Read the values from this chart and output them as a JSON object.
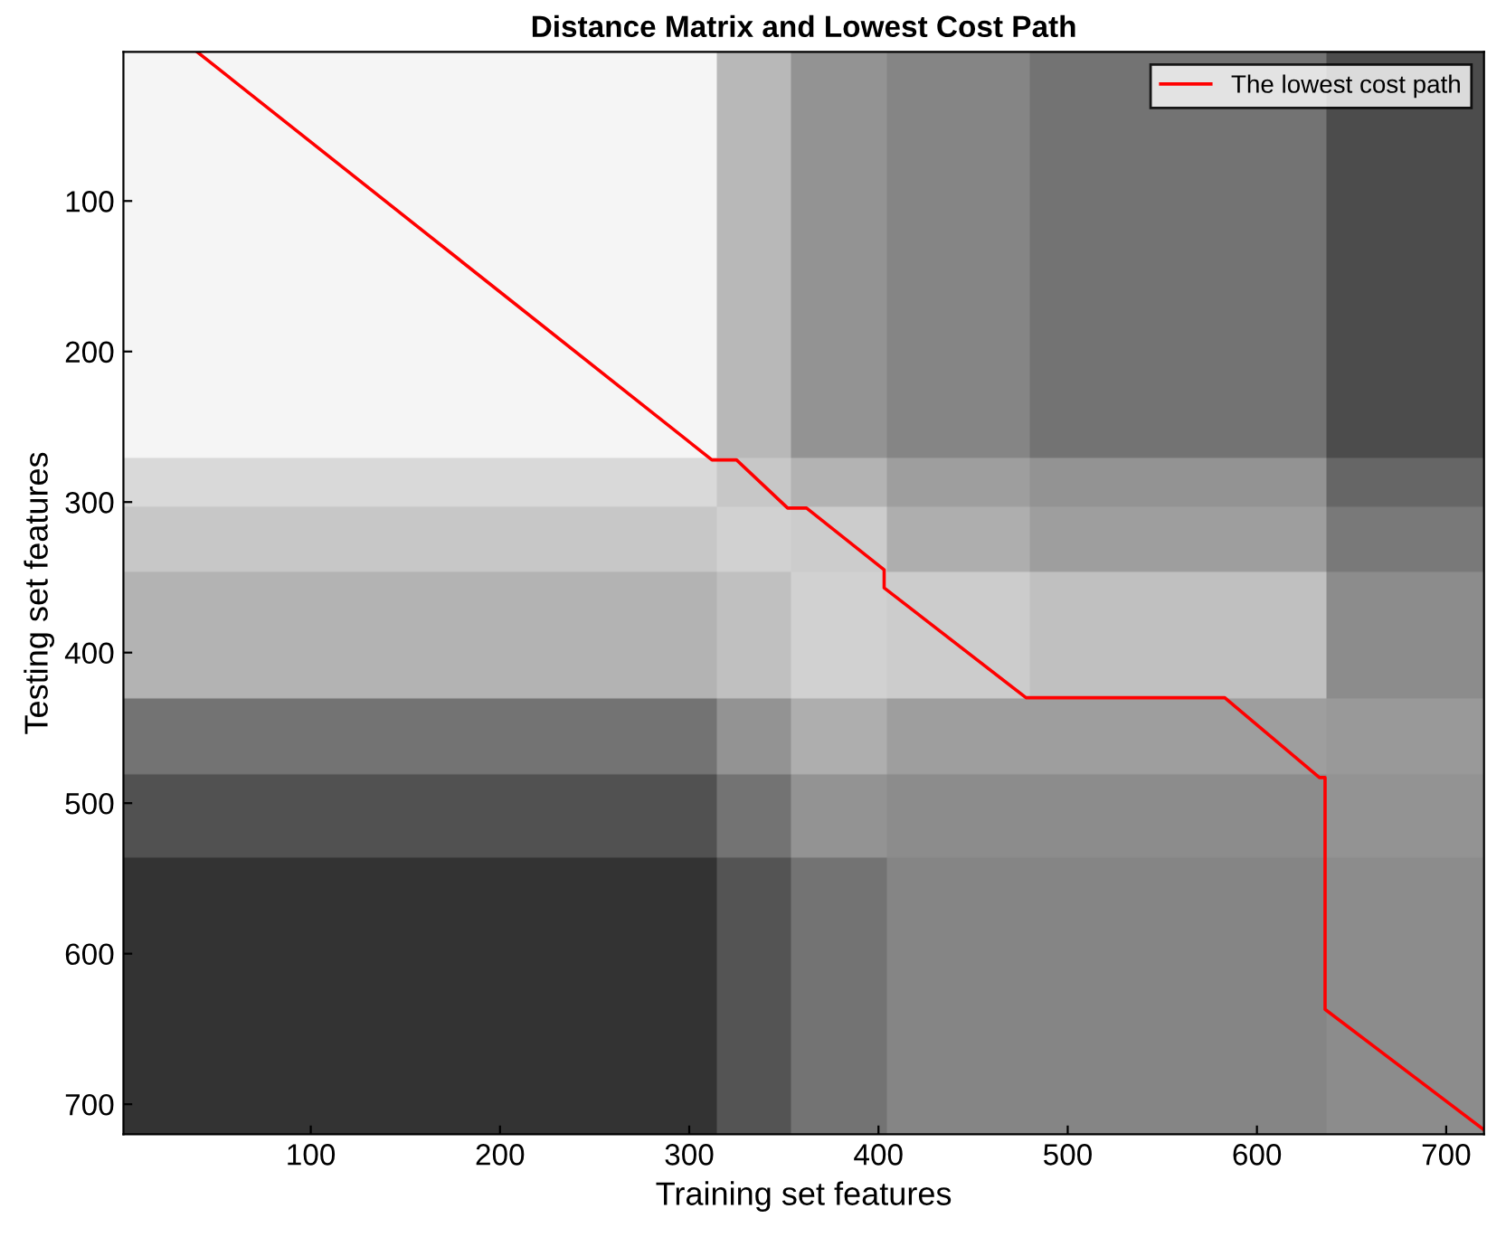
{
  "chart_data": {
    "type": "line",
    "title": "Distance Matrix and Lowest Cost Path",
    "xlabel": "Training set features",
    "ylabel": "Testing set features",
    "series": [
      {
        "name": "The lowest cost path",
        "color": "#ff0000",
        "x": [
          40,
          312,
          325,
          352,
          362,
          403,
          403,
          478,
          583,
          633,
          636,
          636,
          720
        ],
        "values": [
          1,
          272,
          272,
          304,
          304,
          345,
          357,
          430,
          430,
          483,
          483,
          637,
          717
        ]
      }
    ],
    "xlim": [
      1,
      720
    ],
    "ylim": [
      720,
      1
    ],
    "xticks": [
      100,
      200,
      300,
      400,
      500,
      600,
      700
    ],
    "yticks": [
      100,
      200,
      300,
      400,
      500,
      600,
      700
    ],
    "grid": false,
    "legend": "top right",
    "marker": "none",
    "line_style": "solid"
  }
}
